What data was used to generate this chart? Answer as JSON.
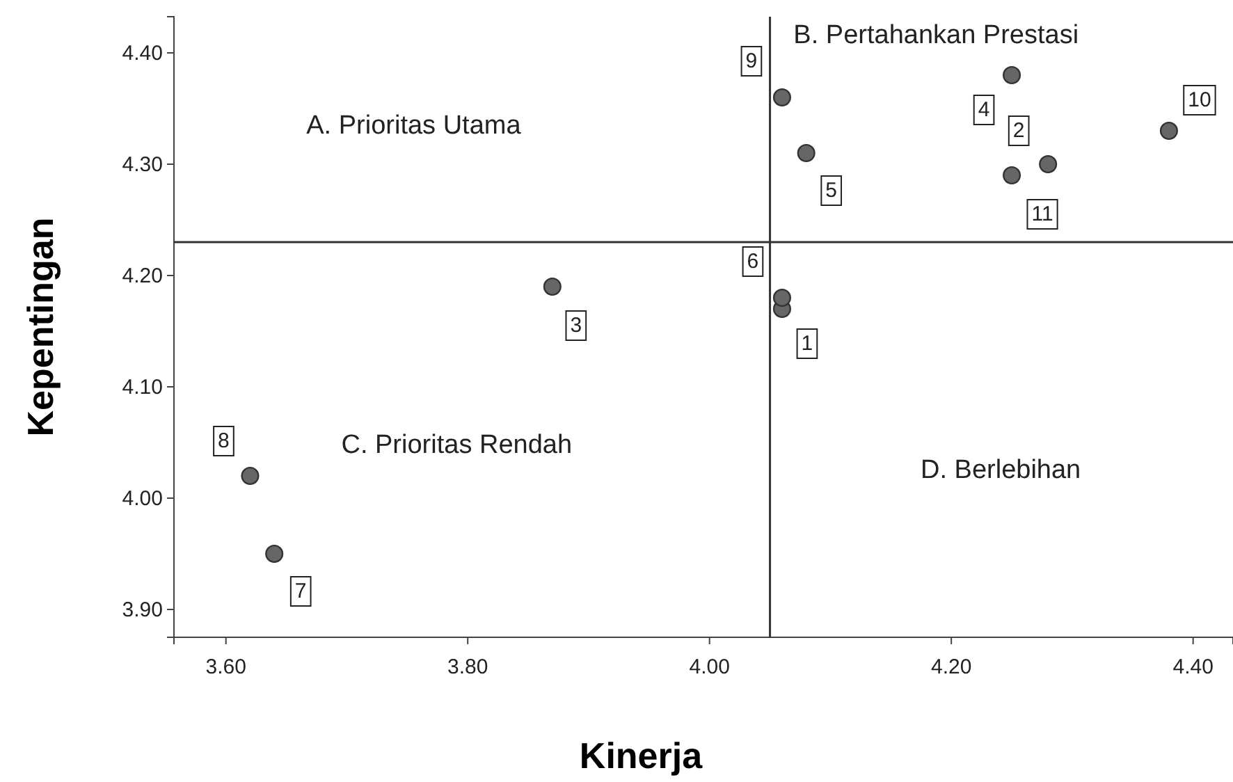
{
  "chart_data": {
    "type": "scatter",
    "xlabel": "Kinerja",
    "ylabel": "Kepentingan",
    "series": [
      {
        "color": "#666666",
        "x": [
          4.06,
          4.28,
          3.87,
          4.25,
          4.08,
          4.06,
          3.64,
          3.62,
          4.06,
          4.38,
          4.25
        ],
        "values": [
          4.17,
          4.3,
          4.19,
          4.38,
          4.31,
          4.18,
          3.95,
          4.02,
          4.36,
          4.33,
          4.29
        ]
      }
    ],
    "marker": "circle",
    "xlim": [
      3.557,
      4.433
    ],
    "xticks": [
      {
        "value": 3.6,
        "label": "3.60"
      },
      {
        "value": 3.8,
        "label": "3.80"
      },
      {
        "value": 4.0,
        "label": "4.00"
      },
      {
        "value": 4.2,
        "label": "4.20"
      },
      {
        "value": 4.4,
        "label": "4.40"
      }
    ],
    "ylim": [
      3.875,
      4.4325
    ],
    "yticks": [
      {
        "value": 3.9,
        "label": "3.90"
      },
      {
        "value": 4.0,
        "label": "4.00"
      },
      {
        "value": 4.1,
        "label": "4.10"
      },
      {
        "value": 4.2,
        "label": "4.20"
      },
      {
        "value": 4.3,
        "label": "4.30"
      },
      {
        "value": 4.4,
        "label": "4.40"
      }
    ],
    "ref_lines": [
      {
        "axis": "x",
        "value": 4.05,
        "color": "#333333"
      },
      {
        "axis": "y",
        "value": 4.23,
        "color": "#333333"
      }
    ],
    "annotations": [
      "A. Prioritas Utama",
      "B. Pertahankan Prestasi",
      "C. Prioritas Rendah",
      "D. Berlebihan",
      {
        "text": "1",
        "x": 4.06,
        "y": 4.17
      },
      {
        "text": "2",
        "x": 4.28,
        "y": 4.3
      },
      {
        "text": "3",
        "x": 3.87,
        "y": 4.19
      },
      {
        "text": "4",
        "x": 4.25,
        "y": 4.38
      },
      {
        "text": "5",
        "x": 4.08,
        "y": 4.31
      },
      {
        "text": "6",
        "x": 4.06,
        "y": 4.18
      },
      {
        "text": "7",
        "x": 3.64,
        "y": 3.95
      },
      {
        "text": "8",
        "x": 3.62,
        "y": 4.02
      },
      {
        "text": "9",
        "x": 4.06,
        "y": 4.36
      },
      {
        "text": "10",
        "x": 4.38,
        "y": 4.33
      },
      {
        "text": "11",
        "x": 4.25,
        "y": 4.29
      }
    ]
  }
}
